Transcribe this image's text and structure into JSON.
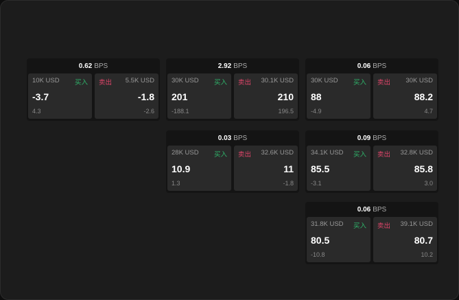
{
  "labels": {
    "buy": "买入",
    "sell": "卖出",
    "unit": "BPS"
  },
  "colors": {
    "buy": "#2fb56b",
    "sell": "#e0456a",
    "panel": "#2a2a2a",
    "background": "#1c1c1c"
  },
  "cards": [
    {
      "spread": "0.62",
      "bid": {
        "size": "10K USD",
        "price": "-3.7",
        "change": "4.3"
      },
      "ask": {
        "size": "5.5K USD",
        "price": "-1.8",
        "change": "-2.6"
      }
    },
    {
      "spread": "2.92",
      "bid": {
        "size": "30K USD",
        "price": "201",
        "change": "-188.1"
      },
      "ask": {
        "size": "30.1K USD",
        "price": "210",
        "change": "196.5"
      }
    },
    {
      "spread": "0.06",
      "bid": {
        "size": "30K USD",
        "price": "88",
        "change": "-4.9"
      },
      "ask": {
        "size": "30K USD",
        "price": "88.2",
        "change": "4.7"
      }
    },
    {
      "spread": "0.03",
      "bid": {
        "size": "28K USD",
        "price": "10.9",
        "change": "1.3"
      },
      "ask": {
        "size": "32.6K USD",
        "price": "11",
        "change": "-1.8"
      }
    },
    {
      "spread": "0.09",
      "bid": {
        "size": "34.1K USD",
        "price": "85.5",
        "change": "-3.1"
      },
      "ask": {
        "size": "32.8K USD",
        "price": "85.8",
        "change": "3.0"
      }
    },
    {
      "spread": "0.06",
      "bid": {
        "size": "31.8K USD",
        "price": "80.5",
        "change": "-10.8"
      },
      "ask": {
        "size": "39.1K USD",
        "price": "80.7",
        "change": "10.2"
      }
    }
  ]
}
